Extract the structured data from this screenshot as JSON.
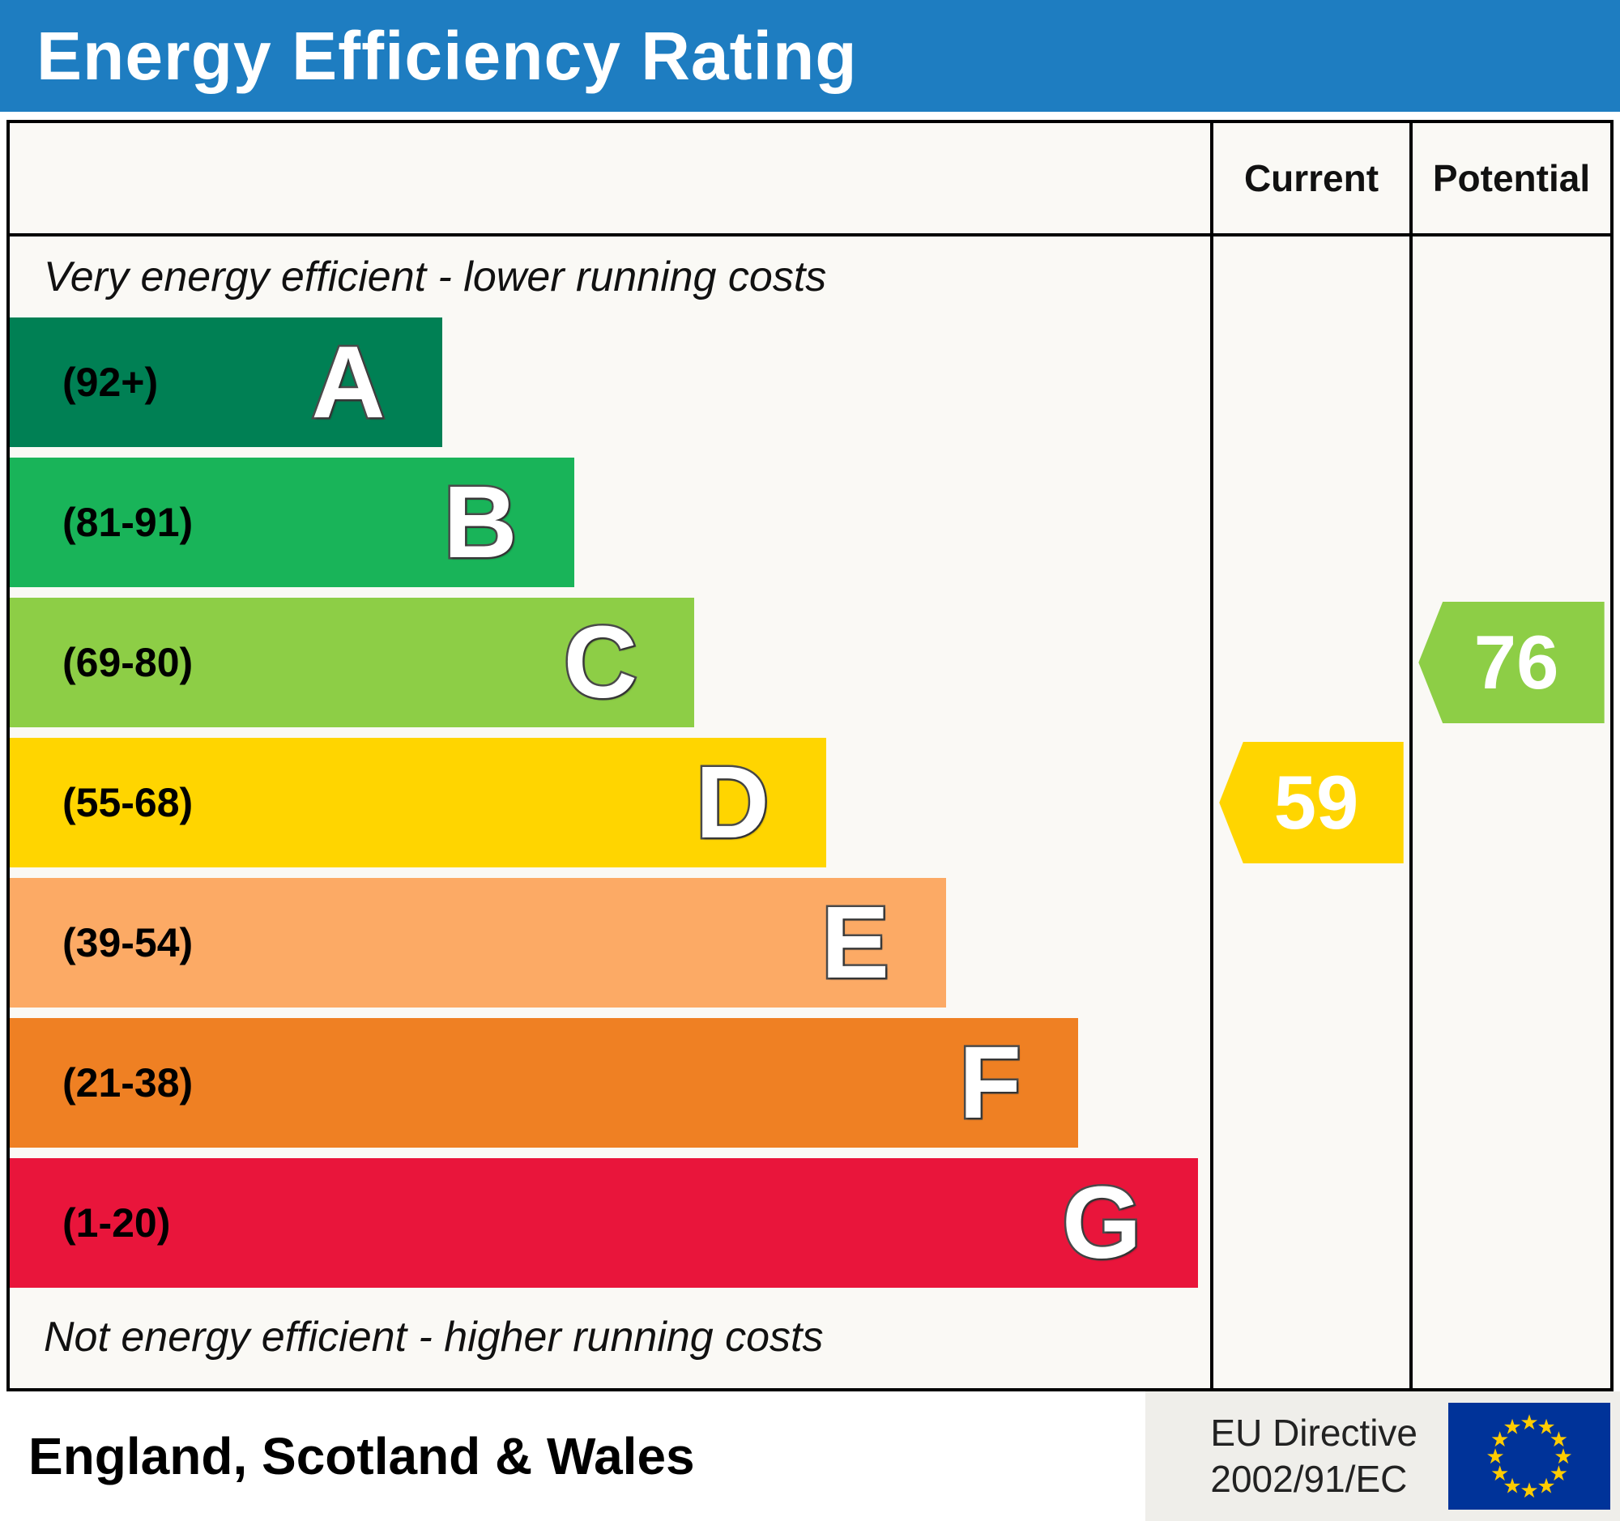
{
  "header": {
    "title": "Energy Efficiency Rating"
  },
  "columns": {
    "current": "Current",
    "potential": "Potential"
  },
  "captions": {
    "top": "Very energy efficient - lower running costs",
    "bottom": "Not energy efficient - higher running costs"
  },
  "footer": {
    "region": "England, Scotland & Wales",
    "directive_line1": "EU Directive",
    "directive_line2": "2002/91/EC"
  },
  "colors": {
    "header_blue": "#1e7dc1",
    "eu_flag_blue": "#003399",
    "eu_star_yellow": "#ffcc00"
  },
  "chart_data": {
    "type": "bar",
    "title": "Energy Efficiency Rating",
    "legend_position": "none",
    "grid": false,
    "columns": [
      "Current",
      "Potential"
    ],
    "bands": [
      {
        "letter": "A",
        "range": "(92+)",
        "color": "#008054",
        "width_pct": 36
      },
      {
        "letter": "B",
        "range": "(81-91)",
        "color": "#19b459",
        "width_pct": 47
      },
      {
        "letter": "C",
        "range": "(69-80)",
        "color": "#8dce46",
        "width_pct": 57
      },
      {
        "letter": "D",
        "range": "(55-68)",
        "color": "#ffd500",
        "width_pct": 68
      },
      {
        "letter": "E",
        "range": "(39-54)",
        "color": "#fcaa65",
        "width_pct": 78
      },
      {
        "letter": "F",
        "range": "(21-38)",
        "color": "#ef8023",
        "width_pct": 89
      },
      {
        "letter": "G",
        "range": "(1-20)",
        "color": "#e9153b",
        "width_pct": 99
      }
    ],
    "current": {
      "value": 59,
      "band": "D",
      "band_index": 3,
      "color": "#ffd500"
    },
    "potential": {
      "value": 76,
      "band": "C",
      "band_index": 2,
      "color": "#8dce46"
    }
  }
}
